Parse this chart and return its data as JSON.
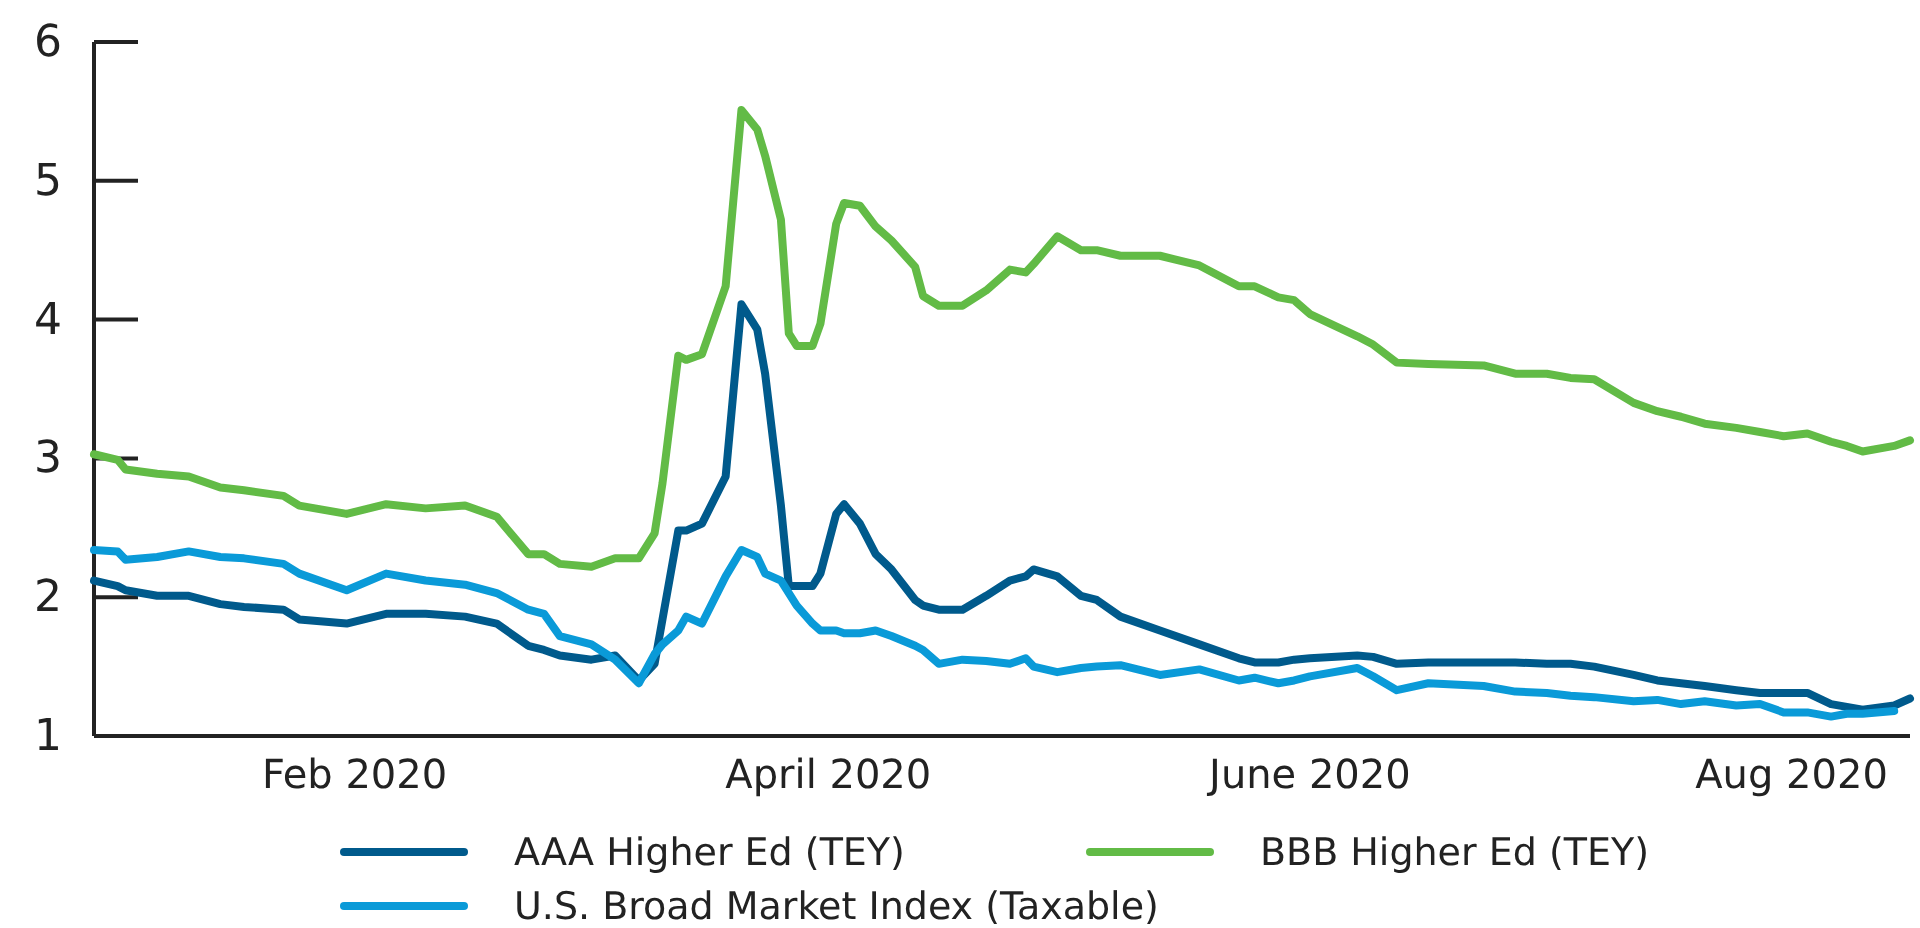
{
  "chart_data": {
    "type": "line",
    "x": [
      "2019-12-30",
      "2020-01-02",
      "2020-01-03",
      "2020-01-07",
      "2020-01-11",
      "2020-01-15",
      "2020-01-18",
      "2020-01-23",
      "2020-01-25",
      "2020-01-31",
      "2020-02-05",
      "2020-02-10",
      "2020-02-15",
      "2020-02-19",
      "2020-02-23",
      "2020-02-25",
      "2020-02-27",
      "2020-03-02",
      "2020-03-05",
      "2020-03-08",
      "2020-03-10",
      "2020-03-11",
      "2020-03-13",
      "2020-03-14",
      "2020-03-16",
      "2020-03-19",
      "2020-03-21",
      "2020-03-23",
      "2020-03-24",
      "2020-03-26",
      "2020-03-27",
      "2020-03-28",
      "2020-03-30",
      "2020-03-31",
      "2020-04-02",
      "2020-04-03",
      "2020-04-05",
      "2020-04-07",
      "2020-04-09",
      "2020-04-12",
      "2020-04-13",
      "2020-04-15",
      "2020-04-18",
      "2020-04-21",
      "2020-04-24",
      "2020-04-26",
      "2020-04-27",
      "2020-04-30",
      "2020-05-03",
      "2020-05-05",
      "2020-05-08",
      "2020-05-13",
      "2020-05-18",
      "2020-05-23",
      "2020-05-25",
      "2020-05-28",
      "2020-05-30",
      "2020-06-01",
      "2020-06-07",
      "2020-06-09",
      "2020-06-12",
      "2020-06-16",
      "2020-06-23",
      "2020-06-27",
      "2020-07-01",
      "2020-07-04",
      "2020-07-07",
      "2020-07-12",
      "2020-07-15",
      "2020-07-18",
      "2020-07-21",
      "2020-07-25",
      "2020-07-28",
      "2020-07-31",
      "2020-08-03",
      "2020-08-06",
      "2020-08-08",
      "2020-08-10",
      "2020-08-14",
      "2020-08-16"
    ],
    "series": [
      {
        "name": "AAA Higher Ed (TEY)",
        "color": "#005a8c",
        "values": [
          2.12,
          2.08,
          2.05,
          2.01,
          2.01,
          1.95,
          1.93,
          1.91,
          1.84,
          1.81,
          1.88,
          1.88,
          1.86,
          1.81,
          1.65,
          1.62,
          1.58,
          1.55,
          1.58,
          1.4,
          1.52,
          1.84,
          2.48,
          2.48,
          2.53,
          2.87,
          4.11,
          3.93,
          3.61,
          2.66,
          2.08,
          2.08,
          2.08,
          2.17,
          2.6,
          2.67,
          2.53,
          2.31,
          2.2,
          1.98,
          1.94,
          1.91,
          1.91,
          2.01,
          2.12,
          2.15,
          2.2,
          2.15,
          2.01,
          1.98,
          1.86,
          1.76,
          1.66,
          1.56,
          1.53,
          1.53,
          1.55,
          1.56,
          1.58,
          1.57,
          1.52,
          1.53,
          1.53,
          1.53,
          1.52,
          1.52,
          1.5,
          1.44,
          1.4,
          1.38,
          1.36,
          1.33,
          1.31,
          1.31,
          1.31,
          1.23,
          1.21,
          1.19,
          1.22,
          1.27
        ]
      },
      {
        "name": "BBB Higher Ed (TEY)",
        "color": "#62bb46",
        "values": [
          3.03,
          2.99,
          2.92,
          2.89,
          2.87,
          2.79,
          2.77,
          2.73,
          2.66,
          2.6,
          2.67,
          2.64,
          2.66,
          2.58,
          2.31,
          2.31,
          2.24,
          2.22,
          2.28,
          2.28,
          2.46,
          2.82,
          3.74,
          3.71,
          3.75,
          4.24,
          5.51,
          5.37,
          5.18,
          4.72,
          3.9,
          3.81,
          3.81,
          3.97,
          4.69,
          4.84,
          4.82,
          4.67,
          4.57,
          4.38,
          4.17,
          4.1,
          4.1,
          4.21,
          4.36,
          4.34,
          4.4,
          4.6,
          4.5,
          4.5,
          4.46,
          4.46,
          4.39,
          4.24,
          4.24,
          4.16,
          4.14,
          4.04,
          3.88,
          3.82,
          3.69,
          3.68,
          3.67,
          3.61,
          3.61,
          3.58,
          3.57,
          3.4,
          3.34,
          3.3,
          3.25,
          3.22,
          3.19,
          3.16,
          3.18,
          3.12,
          3.09,
          3.05,
          3.09,
          3.13
        ]
      },
      {
        "name": "U.S. Broad Market Index (Taxable)",
        "color": "#0a9ad8",
        "values": [
          2.34,
          2.33,
          2.27,
          2.29,
          2.33,
          2.29,
          2.28,
          2.24,
          2.17,
          2.05,
          2.17,
          2.12,
          2.09,
          2.03,
          1.91,
          1.88,
          1.72,
          1.66,
          1.55,
          1.38,
          1.59,
          1.66,
          1.76,
          1.86,
          1.81,
          2.15,
          2.34,
          2.29,
          2.17,
          2.12,
          2.03,
          1.94,
          1.81,
          1.76,
          1.76,
          1.74,
          1.74,
          1.76,
          1.72,
          1.65,
          1.62,
          1.52,
          1.55,
          1.54,
          1.52,
          1.56,
          1.5,
          1.46,
          1.49,
          1.5,
          1.51,
          1.44,
          1.48,
          1.4,
          1.42,
          1.38,
          1.4,
          1.43,
          1.49,
          1.43,
          1.33,
          1.38,
          1.36,
          1.32,
          1.31,
          1.29,
          1.28,
          1.25,
          1.26,
          1.23,
          1.25,
          1.22,
          1.23,
          1.17,
          1.17,
          1.14,
          1.16,
          1.16,
          1.18,
          null
        ]
      }
    ],
    "xlim": [
      "2019-12-30",
      "2020-08-16"
    ],
    "xticks": [
      {
        "value": "2020-02-01",
        "label": "Feb 2020"
      },
      {
        "value": "2020-04-01",
        "label": "April 2020"
      },
      {
        "value": "2020-06-01",
        "label": "June 2020"
      },
      {
        "value": "2020-08-01",
        "label": "Aug 2020"
      }
    ],
    "ylim": [
      1,
      6
    ],
    "yticks": [
      1,
      2,
      3,
      4,
      5,
      6
    ],
    "legend": "bottom",
    "line_style": "solid"
  }
}
